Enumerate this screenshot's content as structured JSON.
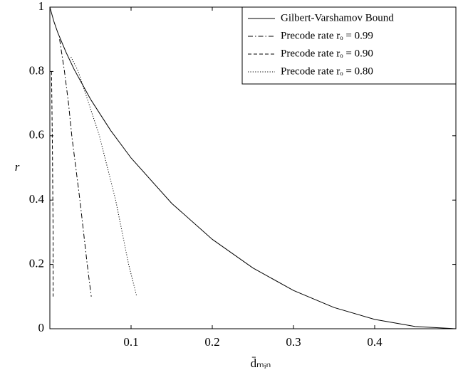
{
  "chart_data": {
    "type": "line",
    "xlabel": "d̄ₘᵢₙ",
    "ylabel": "r",
    "xlim": [
      0,
      0.5
    ],
    "ylim": [
      0,
      1
    ],
    "xticks": [
      0.1,
      0.2,
      0.3,
      0.4
    ],
    "yticks": [
      0,
      0.2,
      0.4,
      0.6,
      0.8,
      1
    ],
    "legend": "upper right",
    "series": [
      {
        "name": "Gilbert-Varshamov Bound",
        "color": "#000000",
        "linestyle": "solid",
        "x": [
          0,
          0.005,
          0.01,
          0.02,
          0.03,
          0.05,
          0.075,
          0.1,
          0.15,
          0.2,
          0.25,
          0.3,
          0.35,
          0.4,
          0.45,
          0.5
        ],
        "values": [
          1,
          0.955,
          0.919,
          0.859,
          0.806,
          0.714,
          0.616,
          0.531,
          0.39,
          0.278,
          0.189,
          0.119,
          0.066,
          0.029,
          0.007,
          0
        ]
      },
      {
        "name": "Precode rate rₒ = 0.99",
        "color": "#000000",
        "linestyle": "dashdot",
        "x": [
          0.012,
          0.018,
          0.023,
          0.027,
          0.037,
          0.046,
          0.051
        ],
        "values": [
          0.9,
          0.8,
          0.7,
          0.6,
          0.4,
          0.2,
          0.1
        ]
      },
      {
        "name": "Precode rate rₒ = 0.90",
        "color": "#000000",
        "linestyle": "dashed",
        "x": [
          0.002,
          0.003,
          0.004,
          0.004
        ],
        "values": [
          0.8,
          0.6,
          0.3,
          0.1
        ]
      },
      {
        "name": "Precode rate rₒ = 0.80",
        "color": "#000000",
        "linestyle": "dotted",
        "x": [
          0.026,
          0.035,
          0.061,
          0.081,
          0.097,
          0.107
        ],
        "values": [
          0.845,
          0.8,
          0.6,
          0.4,
          0.2,
          0.1
        ]
      }
    ]
  }
}
